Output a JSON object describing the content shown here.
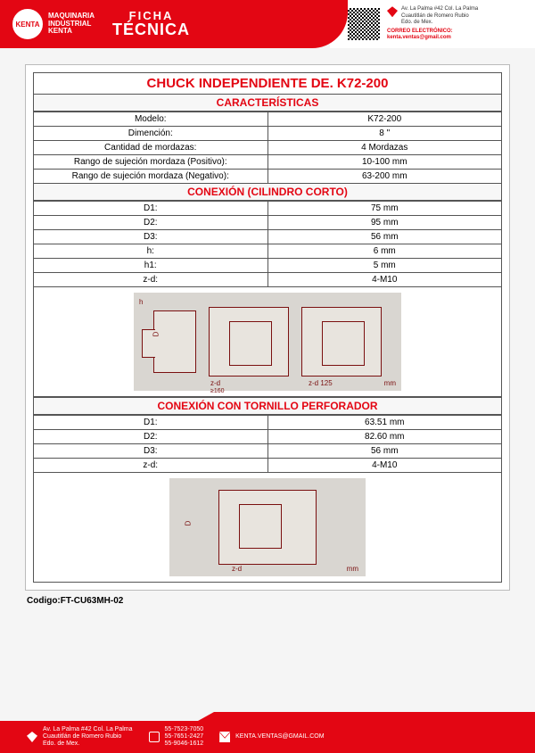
{
  "header": {
    "brand_line1": "MAQUINARIA",
    "brand_line2": "INDUSTRIAL",
    "brand_line3": "KENTA",
    "logo_text": "KENTA",
    "ficha_l1": "FICHA",
    "ficha_l2": "TÉCNICA",
    "address_l1": "Av. La Palma #42 Col. La Palma",
    "address_l2": "Cuautitlán de Romero Rubio",
    "address_l3": "Edo. de Mex.",
    "email_label": "CORREO ELECTRÓNICO:",
    "email_value": "kenta.ventas@gmail.com"
  },
  "title": "CHUCK INDEPENDIENTE DE. K72-200",
  "section_caracteristicas": "CARACTERÍSTICAS",
  "caracteristicas": [
    {
      "label": "Modelo:",
      "value": "K72-200"
    },
    {
      "label": "Dimención:",
      "value": "8 \""
    },
    {
      "label": "Cantidad de mordazas:",
      "value": "4 Mordazas"
    },
    {
      "label": "Rango de sujeción  mordaza (Positivo):",
      "value": "10-100 mm"
    },
    {
      "label": "Rango de sujeción  mordaza (Negativo):",
      "value": "63-200 mm"
    }
  ],
  "section_conexion_cilindro": "CONEXIÓN (CILINDRO CORTO)",
  "conexion_cilindro": [
    {
      "label": "D1:",
      "value": "75 mm"
    },
    {
      "label": "D2:",
      "value": "95 mm"
    },
    {
      "label": "D3:",
      "value": "56 mm"
    },
    {
      "label": "h:",
      "value": "6 mm"
    },
    {
      "label": "h1:",
      "value": "5 mm"
    },
    {
      "label": "z-d:",
      "value": "4-M10"
    }
  ],
  "section_conexion_tornillo": "CONEXIÓN CON TORNILLO PERFORADOR",
  "conexion_tornillo": [
    {
      "label": "D1:",
      "value": "63.51 mm"
    },
    {
      "label": "D2:",
      "value": "82.60 mm"
    },
    {
      "label": "D3:",
      "value": "56 mm"
    },
    {
      "label": "z-d:",
      "value": "4-M10"
    }
  ],
  "diagram1": {
    "label_zd": "z-d",
    "label_160": "≥160",
    "label_125": "z-d 125",
    "label_mm": "mm",
    "label_h": "h",
    "label_D": "D"
  },
  "diagram2": {
    "label_zd": "z-d",
    "label_mm": "mm",
    "label_D": "D"
  },
  "code_label": "Codigo:",
  "code_value": "FT-CU63MH-02",
  "footer": {
    "address_l1": "Av. La Palma #42 Col. La Palma",
    "address_l2": "Cuautitlán de Romero Rubio",
    "address_l3": "Edo. de Mex.",
    "phone1": "55-7523-7050",
    "phone2": "55-7651-2427",
    "phone3": "55-9046-1612",
    "email": "KENTA.VENTAS@GMAIL.COM"
  },
  "colors": {
    "accent": "#e30613",
    "border": "#555555",
    "diagram_bg": "#d9d6d1",
    "diagram_line": "#7a1010"
  }
}
